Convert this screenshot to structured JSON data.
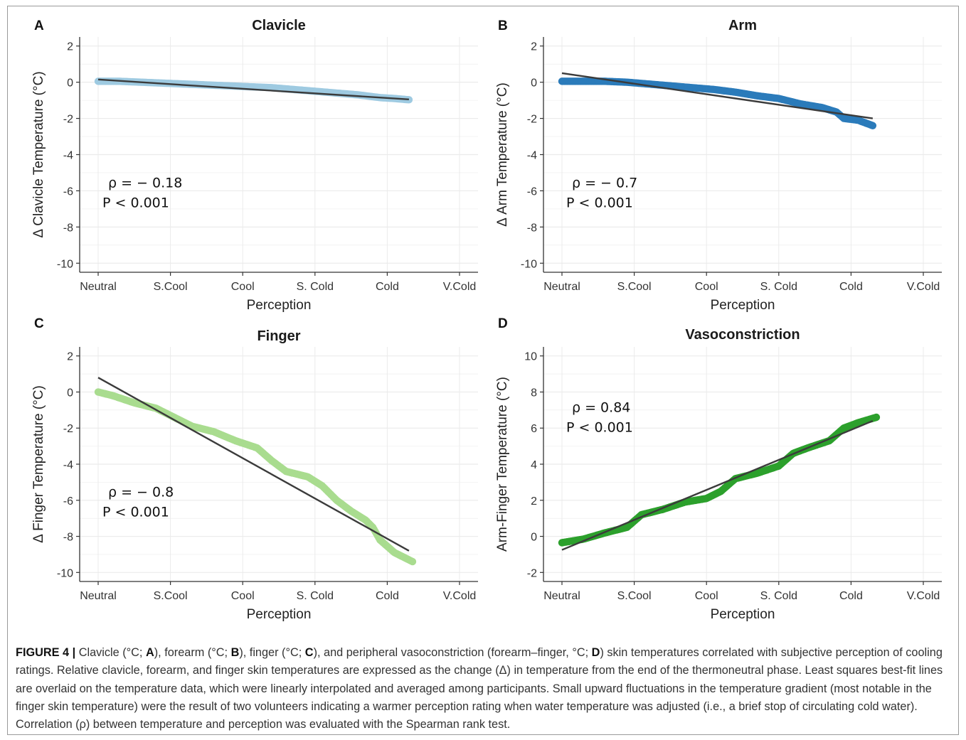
{
  "caption": {
    "figure_label": "FIGURE 4 |",
    "segments": [
      {
        "t": " Clavicle (°C; ",
        "b": false
      },
      {
        "t": "A",
        "b": true
      },
      {
        "t": "), forearm (°C; ",
        "b": false
      },
      {
        "t": "B",
        "b": true
      },
      {
        "t": "), finger (°C; ",
        "b": false
      },
      {
        "t": "C",
        "b": true
      },
      {
        "t": "), and peripheral vasoconstriction (forearm–finger, °C; ",
        "b": false
      },
      {
        "t": "D",
        "b": true
      },
      {
        "t": ") skin temperatures correlated with subjective perception of cooling ratings. Relative clavicle, forearm, and finger skin temperatures are expressed as the change (Δ) in temperature from the end of the thermoneutral phase. Least squares best-fit lines are overlaid on the temperature data, which were linearly interpolated and averaged among participants. Small upward fluctuations in the temperature gradient (most notable in the finger skin temperature) were the result of two volunteers indicating a warmer perception rating when water temperature was adjusted (i.e., a brief stop of circulating cold water). Correlation (ρ) between temperature and perception was evaluated with the Spearman rank test.",
        "b": false
      }
    ]
  },
  "colors": {
    "clavicle": "#9ecae1",
    "arm": "#2b7bba",
    "finger": "#a9dc8f",
    "vasoconstriction": "#2ca02c",
    "fit_line": "#3b3b3b",
    "grid": "#ebebeb",
    "axis": "#333333"
  },
  "chart_data": [
    {
      "panel": "A",
      "type": "scatter",
      "title": "Clavicle",
      "xlabel": "Perception",
      "ylabel": "Δ Clavicle Temperature (°C)",
      "x_categories": [
        "Neutral",
        "S.Cool",
        "Cool",
        "S. Cold",
        "Cold",
        "V.Cold"
      ],
      "ylim": [
        -10.5,
        2.5
      ],
      "yticks": [
        2,
        0,
        -2,
        -4,
        -6,
        -8,
        -10
      ],
      "grid": true,
      "annotation": {
        "rho": "ρ = − 0.18",
        "p": "P < 0.001"
      },
      "series_points": [
        [
          0,
          0.05
        ],
        [
          0.3,
          0.05
        ],
        [
          0.6,
          0.0
        ],
        [
          0.9,
          -0.05
        ],
        [
          1.2,
          -0.1
        ],
        [
          1.5,
          -0.15
        ],
        [
          1.8,
          -0.2
        ],
        [
          2.1,
          -0.25
        ],
        [
          2.4,
          -0.3
        ],
        [
          2.7,
          -0.4
        ],
        [
          3.0,
          -0.5
        ],
        [
          3.3,
          -0.6
        ],
        [
          3.6,
          -0.7
        ],
        [
          3.9,
          -0.85
        ],
        [
          4.1,
          -0.9
        ],
        [
          4.3,
          -0.97
        ]
      ],
      "fit_line": [
        [
          0,
          0.15
        ],
        [
          4.3,
          -0.95
        ]
      ]
    },
    {
      "panel": "B",
      "type": "scatter",
      "title": "Arm",
      "xlabel": "Perception",
      "ylabel": "Δ Arm Temperature (°C)",
      "x_categories": [
        "Neutral",
        "S.Cool",
        "Cool",
        "S. Cold",
        "Cold",
        "V.Cold"
      ],
      "ylim": [
        -10.5,
        2.5
      ],
      "yticks": [
        2,
        0,
        -2,
        -4,
        -6,
        -8,
        -10
      ],
      "grid": true,
      "annotation": {
        "rho": "ρ = − 0.7",
        "p": "P < 0.001"
      },
      "series_points": [
        [
          0,
          0.05
        ],
        [
          0.3,
          0.05
        ],
        [
          0.6,
          0.05
        ],
        [
          0.9,
          0.0
        ],
        [
          1.2,
          -0.1
        ],
        [
          1.5,
          -0.2
        ],
        [
          1.8,
          -0.3
        ],
        [
          2.1,
          -0.4
        ],
        [
          2.4,
          -0.55
        ],
        [
          2.7,
          -0.75
        ],
        [
          3.0,
          -0.9
        ],
        [
          3.3,
          -1.2
        ],
        [
          3.6,
          -1.4
        ],
        [
          3.8,
          -1.65
        ],
        [
          3.9,
          -2.0
        ],
        [
          4.1,
          -2.1
        ],
        [
          4.3,
          -2.4
        ]
      ],
      "fit_line": [
        [
          0,
          0.5
        ],
        [
          4.3,
          -2.0
        ]
      ]
    },
    {
      "panel": "C",
      "type": "scatter",
      "title": "Finger",
      "xlabel": "Perception",
      "ylabel": "Δ Finger Temperature (°C)",
      "x_categories": [
        "Neutral",
        "S.Cool",
        "Cool",
        "S. Cold",
        "Cold",
        "V.Cold"
      ],
      "ylim": [
        -10.5,
        2.5
      ],
      "yticks": [
        2,
        0,
        -2,
        -4,
        -6,
        -8,
        -10
      ],
      "grid": true,
      "annotation": {
        "rho": "ρ = − 0.8",
        "p": "P < 0.001"
      },
      "series_points": [
        [
          0,
          0.0
        ],
        [
          0.2,
          -0.2
        ],
        [
          0.5,
          -0.6
        ],
        [
          0.8,
          -0.9
        ],
        [
          1.1,
          -1.5
        ],
        [
          1.3,
          -1.9
        ],
        [
          1.6,
          -2.2
        ],
        [
          1.9,
          -2.7
        ],
        [
          2.2,
          -3.1
        ],
        [
          2.4,
          -3.8
        ],
        [
          2.6,
          -4.4
        ],
        [
          2.9,
          -4.7
        ],
        [
          3.1,
          -5.2
        ],
        [
          3.3,
          -6.0
        ],
        [
          3.5,
          -6.6
        ],
        [
          3.7,
          -7.1
        ],
        [
          3.8,
          -7.5
        ],
        [
          3.9,
          -8.2
        ],
        [
          4.1,
          -8.9
        ],
        [
          4.35,
          -9.4
        ]
      ],
      "fit_line": [
        [
          0,
          0.8
        ],
        [
          4.3,
          -8.8
        ]
      ]
    },
    {
      "panel": "D",
      "type": "scatter",
      "title": "Vasoconstriction",
      "xlabel": "Perception",
      "ylabel": "Arm-Finger Temperature (°C)",
      "x_categories": [
        "Neutral",
        "S.Cool",
        "Cool",
        "S. Cold",
        "Cold",
        "V.Cold"
      ],
      "ylim": [
        -2.5,
        10.5
      ],
      "yticks": [
        10,
        8,
        6,
        4,
        2,
        0,
        -2
      ],
      "grid": true,
      "annotation": {
        "rho": "ρ = 0.84",
        "p": "P < 0.001"
      },
      "series_points": [
        [
          0,
          -0.35
        ],
        [
          0.3,
          -0.15
        ],
        [
          0.6,
          0.2
        ],
        [
          0.9,
          0.5
        ],
        [
          1.1,
          1.2
        ],
        [
          1.4,
          1.5
        ],
        [
          1.7,
          1.9
        ],
        [
          2.0,
          2.1
        ],
        [
          2.2,
          2.5
        ],
        [
          2.4,
          3.2
        ],
        [
          2.7,
          3.5
        ],
        [
          3.0,
          3.9
        ],
        [
          3.2,
          4.6
        ],
        [
          3.4,
          4.9
        ],
        [
          3.7,
          5.3
        ],
        [
          3.9,
          6.0
        ],
        [
          4.1,
          6.3
        ],
        [
          4.35,
          6.6
        ]
      ],
      "fit_line": [
        [
          0,
          -0.75
        ],
        [
          4.3,
          6.4
        ]
      ]
    }
  ]
}
